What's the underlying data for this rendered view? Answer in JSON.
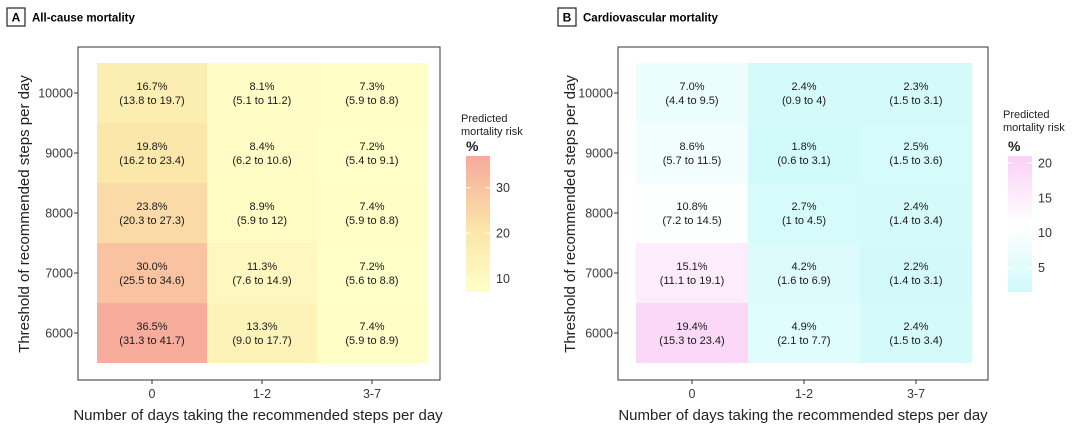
{
  "chart_data": [
    {
      "type": "heatmap",
      "panel_label": "A",
      "title": "All-cause mortality",
      "xlabel": "Number of days taking the recommended steps per day",
      "ylabel": "Threshold of recommended steps per day",
      "x_categories": [
        "0",
        "1-2",
        "3-7"
      ],
      "y_categories": [
        "6000",
        "7000",
        "8000",
        "9000",
        "10000"
      ],
      "cells": [
        {
          "x": "0",
          "y": "10000",
          "value": 16.7,
          "label": "16.7%",
          "ci": "(13.8 to 19.7)"
        },
        {
          "x": "1-2",
          "y": "10000",
          "value": 8.1,
          "label": "8.1%",
          "ci": "(5.1 to 11.2)"
        },
        {
          "x": "3-7",
          "y": "10000",
          "value": 7.3,
          "label": "7.3%",
          "ci": "(5.9 to 8.8)"
        },
        {
          "x": "0",
          "y": "9000",
          "value": 19.8,
          "label": "19.8%",
          "ci": "(16.2 to 23.4)"
        },
        {
          "x": "1-2",
          "y": "9000",
          "value": 8.4,
          "label": "8.4%",
          "ci": "(6.2 to 10.6)"
        },
        {
          "x": "3-7",
          "y": "9000",
          "value": 7.2,
          "label": "7.2%",
          "ci": "(5.4 to 9.1)"
        },
        {
          "x": "0",
          "y": "8000",
          "value": 23.8,
          "label": "23.8%",
          "ci": "(20.3 to 27.3)"
        },
        {
          "x": "1-2",
          "y": "8000",
          "value": 8.9,
          "label": "8.9%",
          "ci": "(5.9 to 12)"
        },
        {
          "x": "3-7",
          "y": "8000",
          "value": 7.4,
          "label": "7.4%",
          "ci": "(5.9 to 8.8)"
        },
        {
          "x": "0",
          "y": "7000",
          "value": 30.0,
          "label": "30.0%",
          "ci": "(25.5 to 34.6)"
        },
        {
          "x": "1-2",
          "y": "7000",
          "value": 11.3,
          "label": "11.3%",
          "ci": "(7.6 to 14.9)"
        },
        {
          "x": "3-7",
          "y": "7000",
          "value": 7.2,
          "label": "7.2%",
          "ci": "(5.6 to 8.8)"
        },
        {
          "x": "0",
          "y": "6000",
          "value": 36.5,
          "label": "36.5%",
          "ci": "(31.3 to 41.7)"
        },
        {
          "x": "1-2",
          "y": "6000",
          "value": 13.3,
          "label": "13.3%",
          "ci": "(9.0 to 17.7)"
        },
        {
          "x": "3-7",
          "y": "6000",
          "value": 7.4,
          "label": "7.4%",
          "ci": "(5.9 to 8.9)"
        }
      ],
      "legend": {
        "title_lines": [
          "Predicted",
          "mortality risk"
        ],
        "unit": "%",
        "ticks": [
          10,
          20,
          30
        ],
        "range": [
          7,
          37
        ],
        "colors": {
          "low": "#ffffc8",
          "mid": "#fbe6a8",
          "high": "#f7aa9c"
        }
      }
    },
    {
      "type": "heatmap",
      "panel_label": "B",
      "title": "Cardiovascular mortality",
      "xlabel": "Number of days taking the recommended steps per day",
      "ylabel": "Threshold of recommended steps per day",
      "x_categories": [
        "0",
        "1-2",
        "3-7"
      ],
      "y_categories": [
        "6000",
        "7000",
        "8000",
        "9000",
        "10000"
      ],
      "cells": [
        {
          "x": "0",
          "y": "10000",
          "value": 7.0,
          "label": "7.0%",
          "ci": "(4.4 to 9.5)"
        },
        {
          "x": "1-2",
          "y": "10000",
          "value": 2.4,
          "label": "2.4%",
          "ci": "(0.9 to 4)"
        },
        {
          "x": "3-7",
          "y": "10000",
          "value": 2.3,
          "label": "2.3%",
          "ci": "(1.5 to 3.1)"
        },
        {
          "x": "0",
          "y": "9000",
          "value": 8.6,
          "label": "8.6%",
          "ci": "(5.7 to 11.5)"
        },
        {
          "x": "1-2",
          "y": "9000",
          "value": 1.8,
          "label": "1.8%",
          "ci": "(0.6 to 3.1)"
        },
        {
          "x": "3-7",
          "y": "9000",
          "value": 2.5,
          "label": "2.5%",
          "ci": "(1.5 to 3.6)"
        },
        {
          "x": "0",
          "y": "8000",
          "value": 10.8,
          "label": "10.8%",
          "ci": "(7.2 to 14.5)"
        },
        {
          "x": "1-2",
          "y": "8000",
          "value": 2.7,
          "label": "2.7%",
          "ci": "(1 to 4.5)"
        },
        {
          "x": "3-7",
          "y": "8000",
          "value": 2.4,
          "label": "2.4%",
          "ci": "(1.4 to 3.4)"
        },
        {
          "x": "0",
          "y": "7000",
          "value": 15.1,
          "label": "15.1%",
          "ci": "(11.1 to 19.1)"
        },
        {
          "x": "1-2",
          "y": "7000",
          "value": 4.2,
          "label": "4.2%",
          "ci": "(1.6 to 6.9)"
        },
        {
          "x": "3-7",
          "y": "7000",
          "value": 2.2,
          "label": "2.2%",
          "ci": "(1.4 to 3.1)"
        },
        {
          "x": "0",
          "y": "6000",
          "value": 19.4,
          "label": "19.4%",
          "ci": "(15.3 to 23.4)"
        },
        {
          "x": "1-2",
          "y": "6000",
          "value": 4.9,
          "label": "4.9%",
          "ci": "(2.1 to 7.7)"
        },
        {
          "x": "3-7",
          "y": "6000",
          "value": 2.4,
          "label": "2.4%",
          "ci": "(1.5 to 3.4)"
        }
      ],
      "legend": {
        "title_lines": [
          "Predicted",
          "mortality risk"
        ],
        "unit": "%",
        "ticks": [
          5,
          10,
          15,
          20
        ],
        "range": [
          1.5,
          21
        ],
        "colors": {
          "low": "#d0fafa",
          "mid": "#ffffff",
          "high": "#fad0f6"
        }
      }
    }
  ]
}
